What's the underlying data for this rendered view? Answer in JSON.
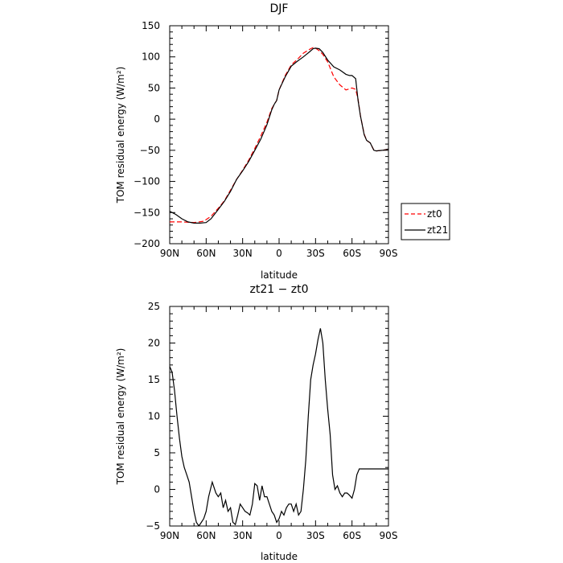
{
  "chart_data": [
    {
      "type": "line",
      "title": "DJF",
      "xlabel": "latitude",
      "ylabel": "TOM residual energy (W/m²)",
      "x_ticks": [
        "90N",
        "60N",
        "30N",
        "0",
        "30S",
        "60S",
        "90S"
      ],
      "xlim": [
        -90,
        90
      ],
      "ylim": [
        -200,
        150
      ],
      "y_ticks": [
        -200,
        -150,
        -100,
        -50,
        0,
        50,
        100,
        150
      ],
      "legend": "right-outside",
      "series": [
        {
          "name": "zt0",
          "color": "#ff0000",
          "dash": "dashed",
          "x": [
            -90,
            -80,
            -70,
            -62,
            -56,
            -50,
            -45,
            -40,
            -35,
            -30,
            -25,
            -20,
            -15,
            -10,
            -6,
            -4,
            -2,
            0,
            5,
            10,
            15,
            20,
            25,
            28,
            30,
            33,
            36,
            40,
            45,
            50,
            55,
            60,
            63,
            65,
            67,
            70,
            72,
            75,
            78,
            80,
            85,
            90
          ],
          "y": [
            -165,
            -165,
            -166,
            -164,
            -156,
            -143,
            -131,
            -114,
            -97,
            -82,
            -66,
            -47,
            -27,
            -5,
            17,
            24,
            30,
            47,
            70,
            87,
            96,
            106,
            112,
            115,
            114,
            110,
            104,
            92,
            68,
            55,
            47,
            50,
            48,
            32,
            5,
            -24,
            -34,
            -38,
            -50,
            -51,
            -50,
            -48
          ]
        },
        {
          "name": "zt21",
          "color": "#000000",
          "dash": "solid",
          "x": [
            -90,
            -85,
            -80,
            -75,
            -70,
            -65,
            -60,
            -56,
            -50,
            -45,
            -40,
            -35,
            -30,
            -25,
            -20,
            -15,
            -10,
            -6,
            -4,
            -2,
            0,
            5,
            10,
            15,
            20,
            25,
            28,
            30,
            33,
            36,
            40,
            45,
            50,
            55,
            58,
            60,
            63,
            65,
            67,
            70,
            72,
            75,
            78,
            80,
            85,
            90
          ],
          "y": [
            -148,
            -153,
            -160,
            -165,
            -167,
            -167,
            -166,
            -160,
            -145,
            -132,
            -116,
            -97,
            -83,
            -68,
            -50,
            -32,
            -9,
            15,
            24,
            30,
            47,
            68,
            85,
            93,
            100,
            108,
            113,
            114,
            113,
            107,
            95,
            84,
            79,
            72,
            70,
            70,
            65,
            30,
            5,
            -25,
            -34,
            -38,
            -50,
            -51,
            -50,
            -48
          ]
        }
      ]
    },
    {
      "type": "line",
      "title": "zt21 − zt0",
      "xlabel": "latitude",
      "ylabel": "TOM residual energy (W/m²)",
      "x_ticks": [
        "90N",
        "60N",
        "30N",
        "0",
        "30S",
        "60S",
        "90S"
      ],
      "xlim": [
        -90,
        90
      ],
      "ylim": [
        -5,
        25
      ],
      "y_ticks": [
        -5,
        0,
        5,
        10,
        15,
        20,
        25
      ],
      "legend": "none",
      "series": [
        {
          "color": "#000000",
          "x": [
            -90,
            -88,
            -86,
            -84,
            -82,
            -80,
            -78,
            -76,
            -74,
            -72,
            -70,
            -68,
            -66,
            -64,
            -62,
            -60,
            -58,
            -55,
            -52,
            -50,
            -48,
            -46,
            -44,
            -42,
            -40,
            -38,
            -36,
            -34,
            -32,
            -30,
            -28,
            -26,
            -24,
            -22,
            -20,
            -18,
            -16,
            -14,
            -12,
            -10,
            -8,
            -6,
            -4,
            -2,
            0,
            2,
            4,
            6,
            8,
            10,
            12,
            14,
            16,
            18,
            20,
            22,
            24,
            26,
            28,
            30,
            32,
            34,
            36,
            38,
            40,
            42,
            44,
            46,
            48,
            50,
            52,
            54,
            56,
            58,
            60,
            62,
            64,
            66,
            68,
            70,
            72,
            74,
            76,
            78,
            80,
            82,
            84,
            86,
            88,
            90
          ],
          "y": [
            16.8,
            16,
            13.5,
            10,
            7,
            4.5,
            3,
            2,
            1,
            -1,
            -3,
            -4.5,
            -5,
            -4.5,
            -4,
            -3,
            -1,
            1,
            -0.5,
            -1,
            -0.5,
            -2.5,
            -1.5,
            -3,
            -2.5,
            -4.5,
            -4.8,
            -3.5,
            -2,
            -2.5,
            -3,
            -3.2,
            -3.5,
            -2,
            0.8,
            0.5,
            -1.5,
            0.5,
            -1,
            -1,
            -2,
            -3,
            -3.5,
            -4.5,
            -4,
            -3,
            -3.5,
            -2.5,
            -2,
            -2,
            -3,
            -2,
            -3.5,
            -3,
            0,
            4,
            10,
            15,
            17,
            18.5,
            20.5,
            22,
            20,
            15,
            11,
            7.5,
            2,
            0,
            0.5,
            -0.5,
            -1,
            -0.5,
            -0.5,
            -0.8,
            -1.2,
            0,
            2,
            2.8,
            2.8,
            2.8,
            2.8,
            2.8,
            2.8,
            2.8,
            2.8,
            2.8,
            2.8,
            2.8,
            2.8,
            2.8
          ]
        }
      ]
    }
  ]
}
